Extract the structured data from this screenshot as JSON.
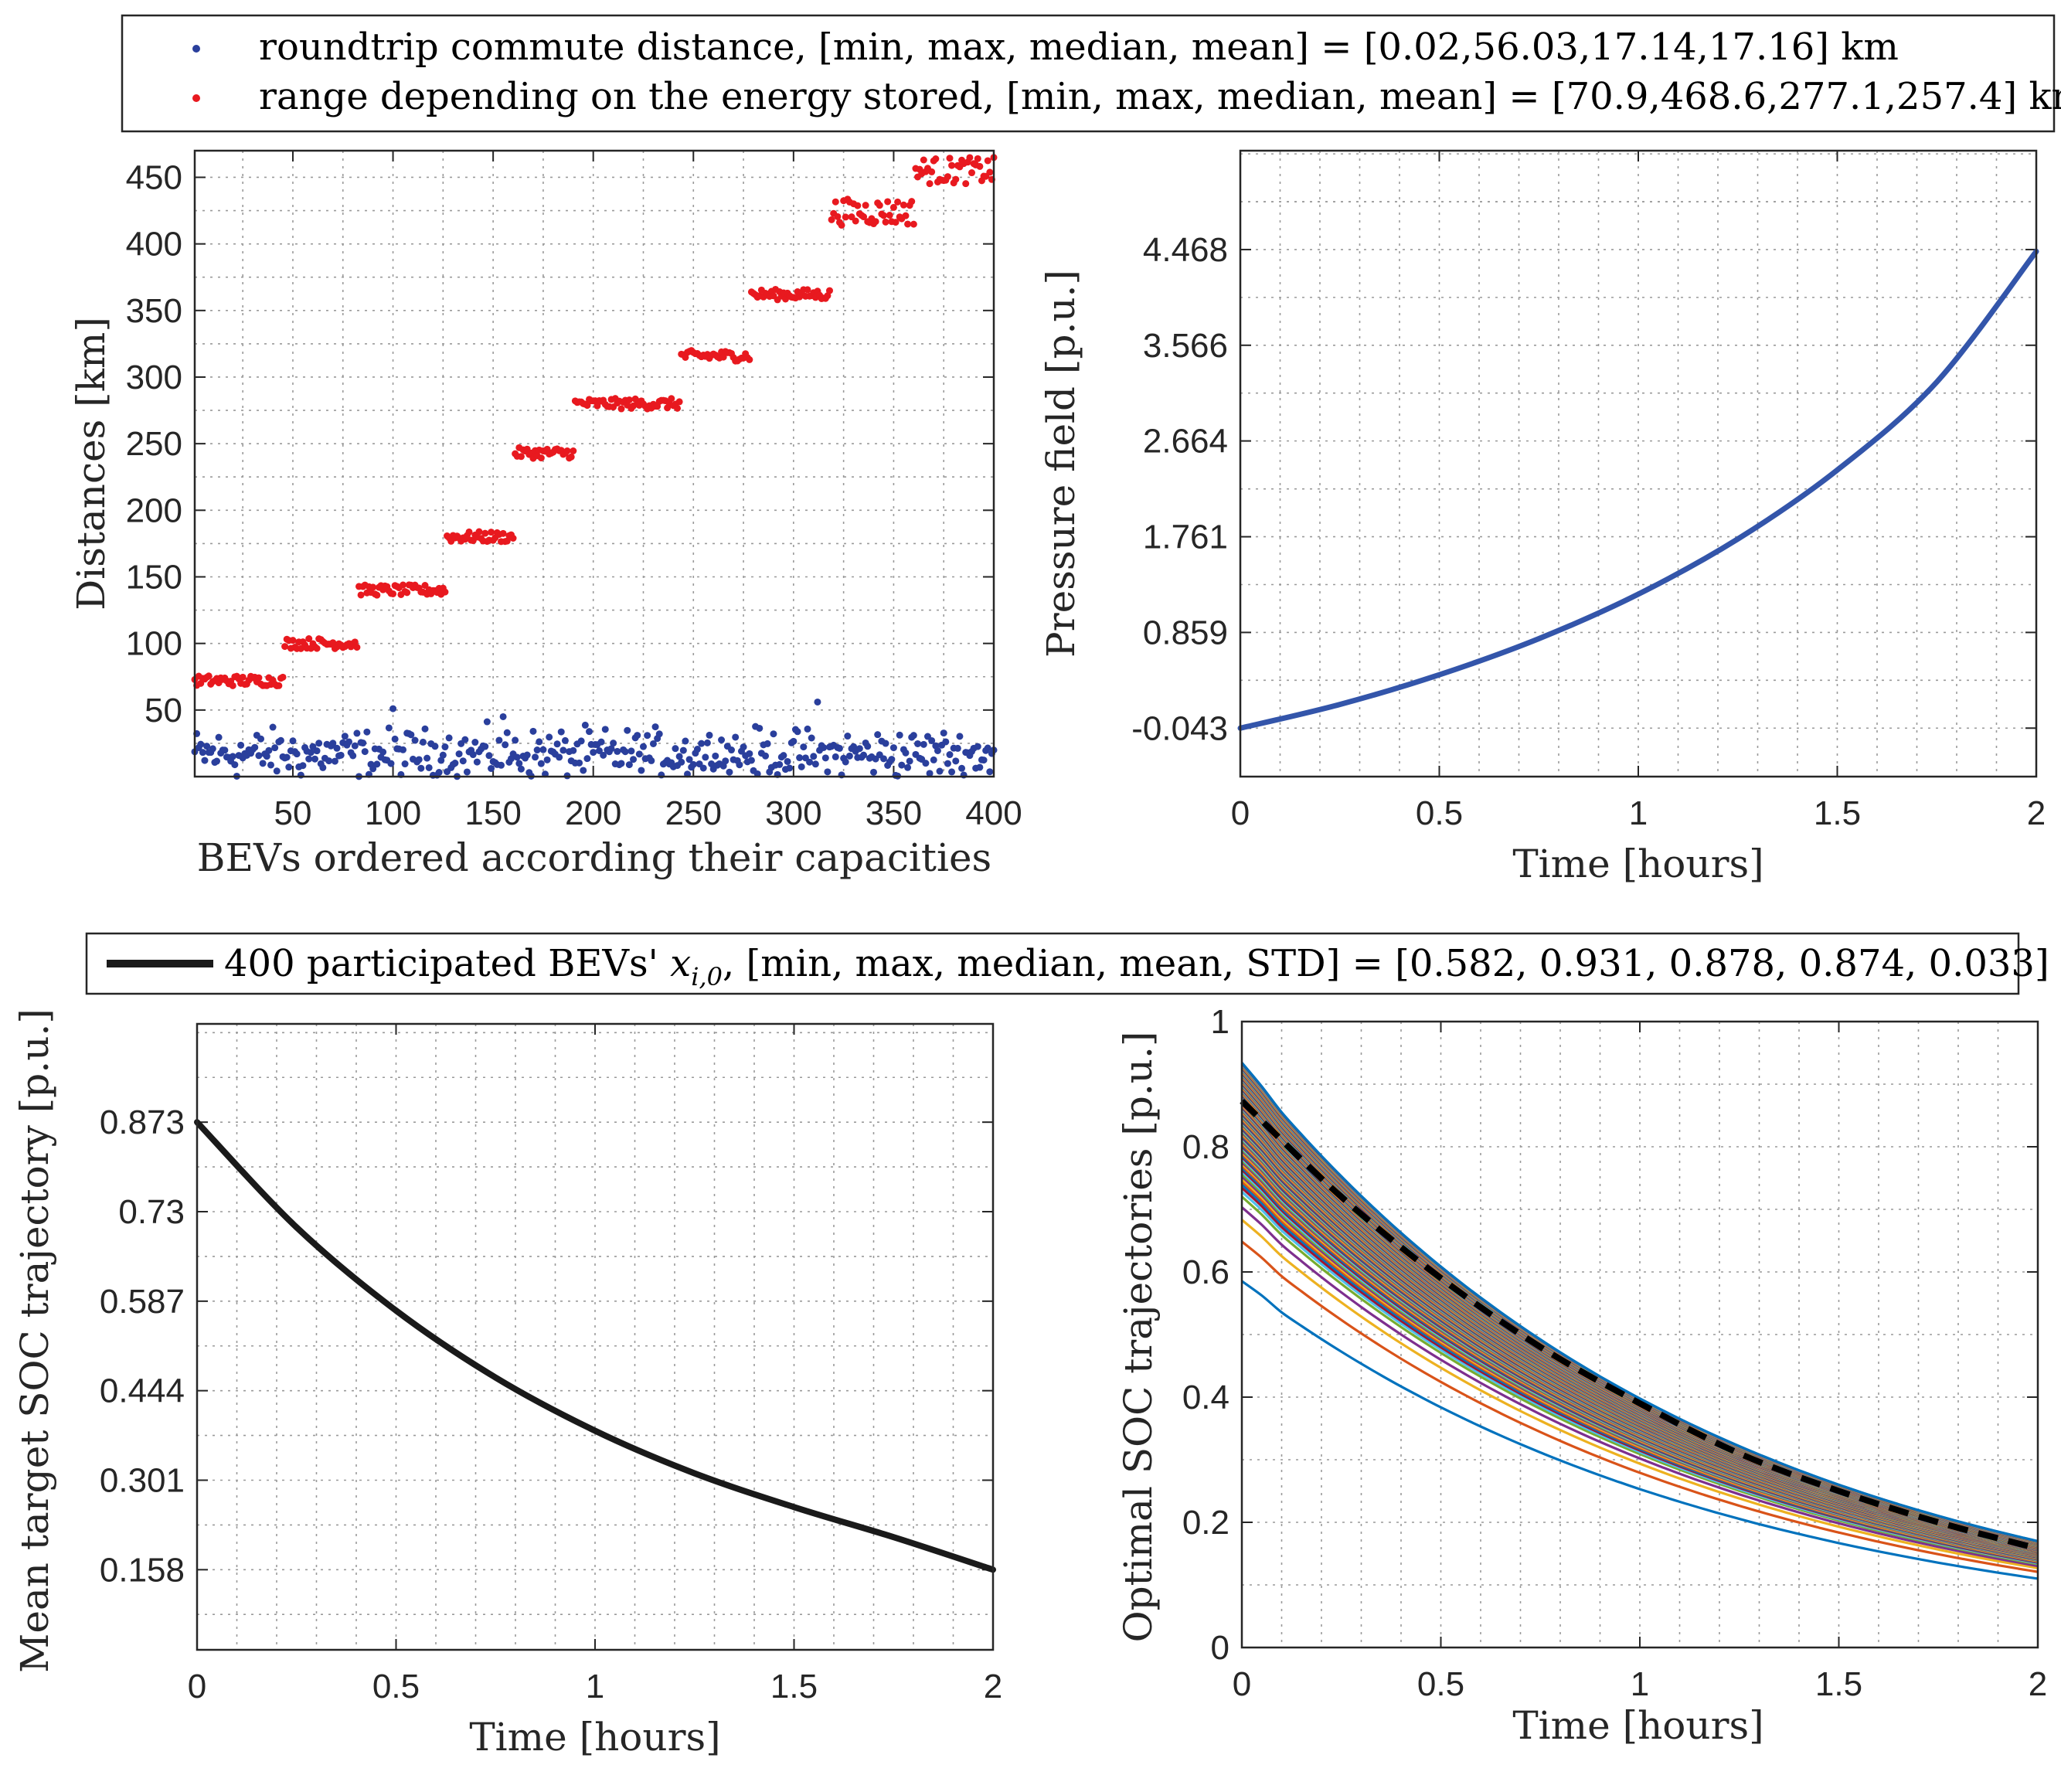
{
  "colors": {
    "commute": "#2a3f9c",
    "range": "#e8191f",
    "pressure": "#3355aa",
    "mean_target": "#1a1a1a",
    "palette": [
      "#0072bd",
      "#d95319",
      "#edb120",
      "#7e2f8e",
      "#77ac30",
      "#4dbeee",
      "#a2142f"
    ]
  },
  "chart_data": [
    {
      "id": "distances",
      "type": "scatter",
      "legend": {
        "entries": [
          "roundtrip commute distance, [min, max, median, mean] = [0.02,56.03,17.14,17.16] km",
          "range depending on the energy stored, [min, max, median, mean] = [70.9,468.6,277.1,257.4] km"
        ]
      },
      "xlabel": "BEVs ordered according their capacities",
      "ylabel": "Distances [km]",
      "xlim": [
        1,
        400
      ],
      "ylim": [
        0,
        470
      ],
      "xticks": [
        50,
        100,
        150,
        200,
        250,
        300,
        350,
        400
      ],
      "yticks": [
        50,
        100,
        150,
        200,
        250,
        300,
        350,
        400,
        450
      ],
      "series": [
        {
          "name": "roundtrip commute distance",
          "n": 400,
          "stats": {
            "min": 0.02,
            "max": 56.03,
            "median": 17.14,
            "mean": 17.16
          }
        },
        {
          "name": "range depending on the energy stored",
          "n": 400,
          "stats": {
            "min": 70.9,
            "max": 468.6,
            "median": 277.1,
            "mean": 257.4
          },
          "steps": [
            {
              "x_start": 1,
              "x_end": 45,
              "level": 72
            },
            {
              "x_start": 46,
              "x_end": 82,
              "level": 100
            },
            {
              "x_start": 83,
              "x_end": 126,
              "level": 140
            },
            {
              "x_start": 127,
              "x_end": 160,
              "level": 180
            },
            {
              "x_start": 161,
              "x_end": 190,
              "level": 243
            },
            {
              "x_start": 191,
              "x_end": 243,
              "level": 280
            },
            {
              "x_start": 244,
              "x_end": 278,
              "level": 316
            },
            {
              "x_start": 279,
              "x_end": 318,
              "level": 362
            },
            {
              "x_start": 319,
              "x_end": 360,
              "level": 424
            },
            {
              "x_start": 361,
              "x_end": 400,
              "level": 455
            }
          ]
        }
      ]
    },
    {
      "id": "pressure",
      "type": "line",
      "xlabel": "Time [hours]",
      "ylabel": "Pressure field [p.u.]",
      "xlim": [
        0,
        2
      ],
      "ylim": [
        -0.5,
        5.4
      ],
      "xticks": [
        "0",
        "0.5",
        "1",
        "1.5",
        "2"
      ],
      "yticks": [
        "-0.043",
        "0.859",
        "1.761",
        "2.664",
        "3.566",
        "4.468"
      ],
      "series": [
        {
          "name": "Pressure field",
          "x": [
            0,
            0.25,
            0.5,
            0.75,
            1.0,
            1.25,
            1.5,
            1.75,
            2.0
          ],
          "y": [
            -0.043,
            0.18,
            0.46,
            0.8,
            1.22,
            1.74,
            2.39,
            3.22,
            4.45
          ]
        }
      ]
    },
    {
      "id": "mean_target",
      "type": "line",
      "legend": {
        "entries": [
          "400 participated BEVs' ",
          "x",
          "i,0",
          ", [min, max, median, mean, STD] = [0.582, 0.931, 0.878, 0.874, 0.033]"
        ]
      },
      "xlabel": "Time [hours]",
      "ylabel": "Mean target SOC trajectory [p.u.]",
      "xlim": [
        0,
        2
      ],
      "ylim": [
        0.03,
        1.03
      ],
      "xticks": [
        "0",
        "0.5",
        "1",
        "1.5",
        "2"
      ],
      "yticks": [
        "0.158",
        "0.301",
        "0.444",
        "0.587",
        "0.73",
        "0.873"
      ],
      "series": [
        {
          "name": "Mean target SOC trajectory",
          "x": [
            0,
            0.25,
            0.5,
            0.75,
            1.0,
            1.25,
            1.5,
            1.75,
            2.0
          ],
          "y": [
            0.873,
            0.705,
            0.572,
            0.465,
            0.38,
            0.312,
            0.258,
            0.21,
            0.158
          ]
        }
      ]
    },
    {
      "id": "optimal_soc",
      "type": "line",
      "xlabel": "Time [hours]",
      "ylabel": "Optimal SOC trajectories [p.u.]",
      "xlim": [
        0,
        2
      ],
      "ylim": [
        0,
        1
      ],
      "xticks": [
        "0",
        "0.5",
        "1",
        "1.5",
        "2"
      ],
      "yticks": [
        "0",
        "0.2",
        "0.4",
        "0.6",
        "0.8",
        "1"
      ],
      "initial_soc_stats": {
        "min": 0.582,
        "max": 0.931,
        "median": 0.878,
        "mean": 0.874,
        "std": 0.033
      },
      "n_trajectories": 400,
      "final_soc_range": [
        0.11,
        0.17
      ],
      "mean_trajectory": {
        "x": [
          0,
          0.25,
          0.5,
          0.75,
          1.0,
          1.25,
          1.5,
          1.75,
          2.0
        ],
        "y": [
          0.873,
          0.72,
          0.59,
          0.48,
          0.39,
          0.31,
          0.25,
          0.2,
          0.158
        ]
      }
    }
  ]
}
